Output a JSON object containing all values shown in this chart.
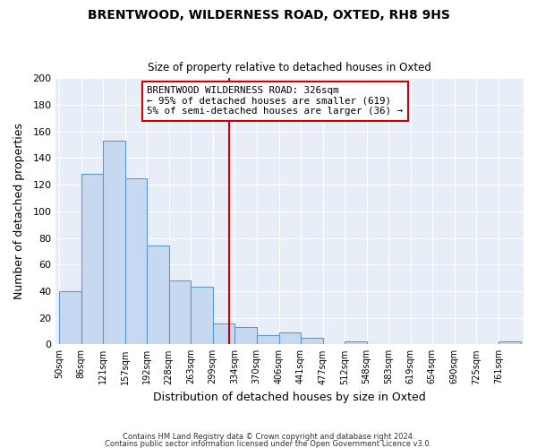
{
  "title": "BRENTWOOD, WILDERNESS ROAD, OXTED, RH8 9HS",
  "subtitle": "Size of property relative to detached houses in Oxted",
  "xlabel": "Distribution of detached houses by size in Oxted",
  "ylabel": "Number of detached properties",
  "footer_line1": "Contains HM Land Registry data © Crown copyright and database right 2024.",
  "footer_line2": "Contains public sector information licensed under the Open Government Licence v3.0.",
  "bin_labels": [
    "50sqm",
    "86sqm",
    "121sqm",
    "157sqm",
    "192sqm",
    "228sqm",
    "263sqm",
    "299sqm",
    "334sqm",
    "370sqm",
    "406sqm",
    "441sqm",
    "477sqm",
    "512sqm",
    "548sqm",
    "583sqm",
    "619sqm",
    "654sqm",
    "690sqm",
    "725sqm",
    "761sqm"
  ],
  "bar_heights": [
    40,
    128,
    153,
    125,
    74,
    48,
    43,
    16,
    13,
    7,
    9,
    5,
    0,
    2,
    0,
    0,
    0,
    0,
    0,
    0,
    2
  ],
  "bar_color": "#c6d9f0",
  "bar_edge_color": "#5b9bd5",
  "property_size": 326,
  "pct_smaller": 95,
  "n_smaller": 619,
  "pct_larger_semi": 5,
  "n_larger_semi": 36,
  "vline_color": "#cc0000",
  "annotation_box_edge": "#cc0000",
  "ylim": [
    0,
    200
  ],
  "yticks": [
    0,
    20,
    40,
    60,
    80,
    100,
    120,
    140,
    160,
    180,
    200
  ],
  "plot_bg_color": "#e8eef7",
  "fig_bg_color": "#ffffff",
  "grid_color": "#ffffff"
}
